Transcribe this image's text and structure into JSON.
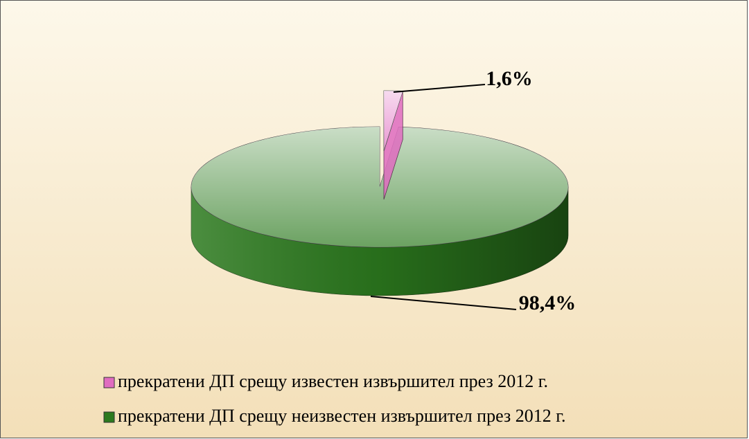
{
  "chart_data": {
    "type": "pie",
    "categories": [
      "прекратени ДП срещу известен извършител през 2012 г.",
      "прекратени ДП срещу неизвестен извършител през 2012 г."
    ],
    "values": [
      1.6,
      98.4
    ],
    "value_labels": [
      "1,6%",
      "98,4%"
    ],
    "colors": [
      "#e06cc0",
      "#2c7a1e"
    ],
    "legend": "bottom"
  }
}
